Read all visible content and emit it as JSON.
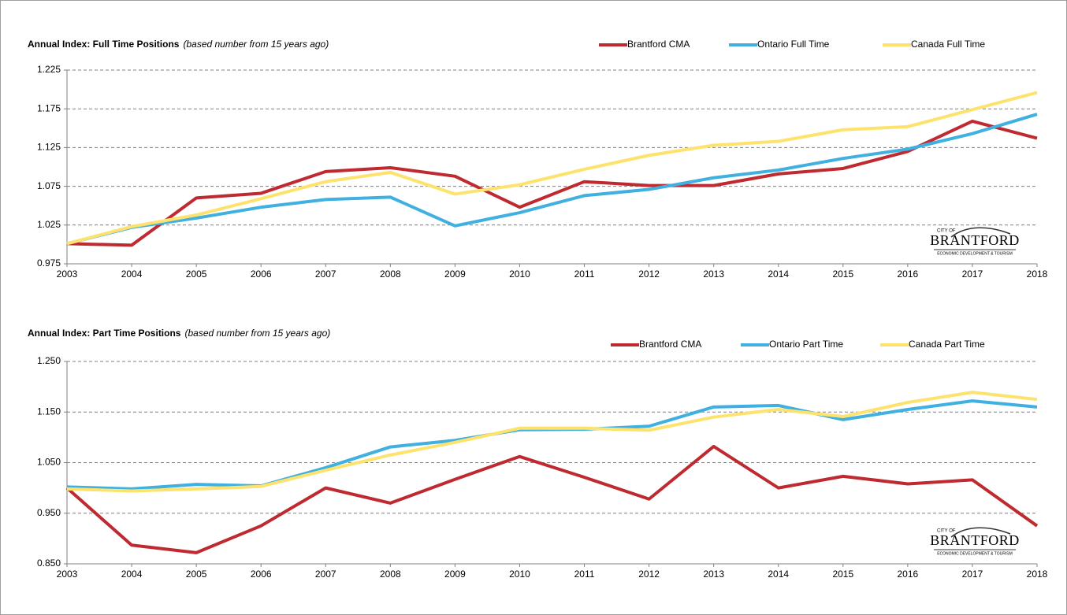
{
  "chart_data": [
    {
      "type": "line",
      "title": "Annual Index: Full Time Positions",
      "subtitle": "(based number from 15 years ago)",
      "x": [
        2003,
        2004,
        2005,
        2006,
        2007,
        2008,
        2009,
        2010,
        2011,
        2012,
        2013,
        2014,
        2015,
        2016,
        2017,
        2018
      ],
      "xlim": [
        2003,
        2018
      ],
      "xticks": [
        2003,
        2004,
        2005,
        2006,
        2007,
        2008,
        2009,
        2010,
        2011,
        2012,
        2013,
        2014,
        2015,
        2016,
        2017,
        2018
      ],
      "ylim": [
        0.975,
        1.225
      ],
      "yticks": [
        0.975,
        1.025,
        1.075,
        1.125,
        1.175,
        1.225
      ],
      "grid": true,
      "legend": "top-right",
      "logo": {
        "top": "CITY OF",
        "name": "BRANTFORD",
        "bottom": "ECONOMIC DEVELOPMENT & TOURISM"
      },
      "series": [
        {
          "name": "Brantford CMA",
          "color": "#be2a30",
          "values": [
            1.001,
            0.999,
            1.06,
            1.066,
            1.094,
            1.099,
            1.088,
            1.048,
            1.081,
            1.076,
            1.076,
            1.091,
            1.098,
            1.12,
            1.159,
            1.137
          ]
        },
        {
          "name": "Ontario Full Time",
          "color": "#3fb0e0",
          "values": [
            1.001,
            1.022,
            1.034,
            1.048,
            1.058,
            1.061,
            1.024,
            1.041,
            1.063,
            1.071,
            1.086,
            1.096,
            1.111,
            1.123,
            1.143,
            1.168
          ]
        },
        {
          "name": "Canada Full Time",
          "color": "#fde36e",
          "values": [
            1.001,
            1.023,
            1.038,
            1.059,
            1.081,
            1.093,
            1.065,
            1.077,
            1.097,
            1.115,
            1.128,
            1.133,
            1.148,
            1.152,
            1.174,
            1.196
          ]
        }
      ]
    },
    {
      "type": "line",
      "title": "Annual Index: Part Time Positions",
      "subtitle": "(based number from 15 years ago)",
      "x": [
        2003,
        2004,
        2005,
        2006,
        2007,
        2008,
        2009,
        2010,
        2011,
        2012,
        2013,
        2014,
        2015,
        2016,
        2017,
        2018
      ],
      "xlim": [
        2003,
        2018
      ],
      "xticks": [
        2003,
        2004,
        2005,
        2006,
        2007,
        2008,
        2009,
        2010,
        2011,
        2012,
        2013,
        2014,
        2015,
        2016,
        2017,
        2018
      ],
      "ylim": [
        0.85,
        1.25
      ],
      "yticks": [
        {
          "value": 0.85,
          "label": "0.850"
        },
        {
          "value": 0.95,
          "label": "0.950"
        },
        {
          "value": 1.05,
          "label": "1.050"
        },
        {
          "value": 1.15,
          "label": "1.150"
        },
        {
          "value": 1.25,
          "label": "1.250"
        }
      ],
      "grid": true,
      "legend": "top-right",
      "logo": {
        "top": "CITY OF",
        "name": "BRANTFORD",
        "bottom": "ECONOMIC DEVELOPMENT & TOURISM"
      },
      "series": [
        {
          "name": "Brantford CMA",
          "color": "#be2a30",
          "values": [
            1.0,
            0.887,
            0.872,
            0.925,
            1.0,
            0.97,
            1.017,
            1.062,
            1.021,
            0.978,
            1.082,
            1.0,
            1.023,
            1.008,
            1.016,
            0.925
          ]
        },
        {
          "name": "Ontario Part Time",
          "color": "#3fb0e0",
          "values": [
            1.002,
            0.998,
            1.007,
            1.004,
            1.04,
            1.081,
            1.094,
            1.115,
            1.116,
            1.122,
            1.16,
            1.163,
            1.135,
            1.155,
            1.172,
            1.16
          ]
        },
        {
          "name": "Canada Part Time",
          "color": "#fde36e",
          "values": [
            0.998,
            0.994,
            0.998,
            1.003,
            1.035,
            1.065,
            1.09,
            1.118,
            1.118,
            1.114,
            1.14,
            1.155,
            1.141,
            1.169,
            1.189,
            1.175
          ]
        }
      ]
    }
  ]
}
